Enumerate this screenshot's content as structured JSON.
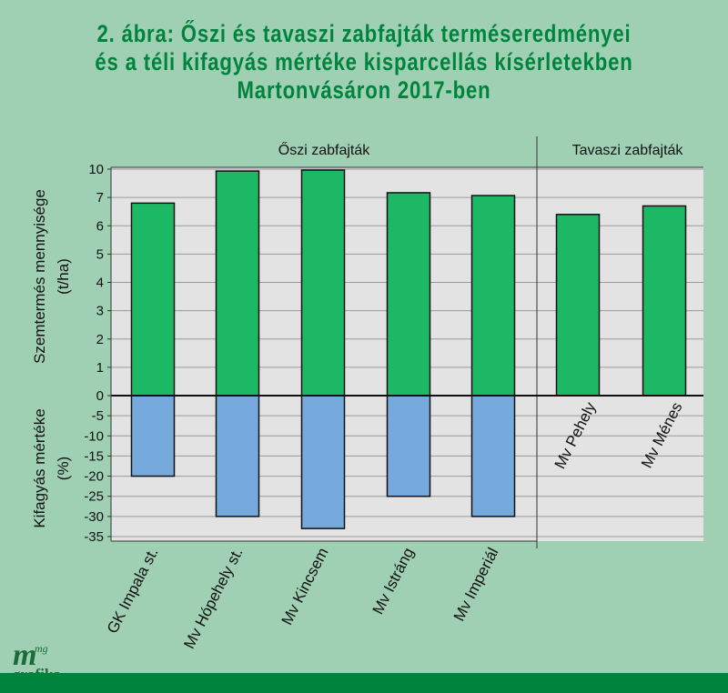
{
  "title_lines": [
    "2. ábra: Őszi és tavaszi zabfajták terméseredményei",
    "és a téli kifagyás mértéke kisparcellás kísérletekben",
    "Martonvásáron 2017-ben"
  ],
  "logo": {
    "main": "m",
    "sup": "mg",
    "sub": "grafika"
  },
  "colors": {
    "yield": "#1db866",
    "frost": "#76aadc",
    "plot_bg": "#e3e3e3",
    "background": "#9fd0b4",
    "title": "#00843d"
  },
  "chart_data": {
    "type": "bar",
    "groups": [
      {
        "label": "Őszi zabfajták",
        "categories": [
          "GK Impala st.",
          "Mv Hópehely st.",
          "Mv Kincsem",
          "Mv Istráng",
          "Mv Imperiál"
        ]
      },
      {
        "label": "Tavaszi zabfajták",
        "categories": [
          "Mv Pehely",
          "Mv Ménes"
        ]
      }
    ],
    "categories": [
      "GK Impala st.",
      "Mv Hópehely st.",
      "Mv Kincsem",
      "Mv Istráng",
      "Mv Imperiál",
      "Mv Pehely",
      "Mv Ménes"
    ],
    "series": [
      {
        "values": [
          6.8,
          9.8,
          9.9,
          7.5,
          7.2,
          6.4,
          6.7
        ]
      },
      {
        "values": [
          -20,
          -30,
          -33,
          -25,
          -30,
          null,
          null
        ]
      }
    ],
    "ylabel_top": [
      "Szemtermés mennyisége",
      "(t/ha)"
    ],
    "ylabel_bottom": [
      "Kifagyás mértéke",
      "(%)"
    ],
    "yticks_top": [
      "10",
      "7",
      "6",
      "5",
      "4",
      "3",
      "2",
      "1",
      "0"
    ],
    "yticks_bottom": [
      "-5",
      "-10",
      "-15",
      "-20",
      "-25",
      "-30",
      "-35"
    ],
    "grid": true
  }
}
